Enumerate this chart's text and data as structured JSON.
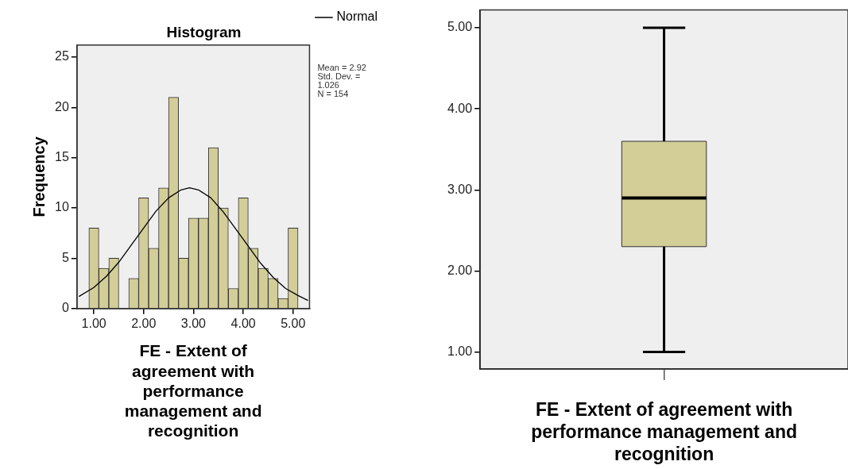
{
  "chart_data": [
    {
      "type": "histogram",
      "title": "Histogram",
      "xlabel": "FE - Extent of agreement with performance management and recognition",
      "ylabel": "Frequency",
      "color": "#d3cd98",
      "bins": [
        0.9,
        1.1,
        1.3,
        1.5,
        1.7,
        1.9,
        2.1,
        2.3,
        2.5,
        2.7,
        2.9,
        3.1,
        3.3,
        3.5,
        3.7,
        3.9,
        4.1,
        4.3,
        4.5,
        4.7,
        4.9,
        5.1
      ],
      "values": [
        8,
        4,
        5,
        0,
        3,
        11,
        6,
        12,
        21,
        5,
        9,
        9,
        16,
        10,
        2,
        11,
        6,
        4,
        3,
        1,
        8
      ],
      "series": [
        {
          "name": "Normal",
          "type": "line",
          "color": "#000000",
          "x": [
            0.7,
            1.0,
            1.25,
            1.5,
            1.75,
            2.0,
            2.25,
            2.5,
            2.75,
            2.92,
            3.1,
            3.35,
            3.6,
            3.85,
            4.1,
            4.35,
            4.6,
            4.85,
            5.1,
            5.3
          ],
          "values": [
            1.2,
            2.1,
            3.2,
            4.6,
            6.3,
            8.0,
            9.7,
            11.0,
            11.8,
            12.0,
            11.8,
            11.0,
            9.6,
            7.9,
            6.2,
            4.5,
            3.1,
            2.0,
            1.3,
            0.8
          ]
        }
      ],
      "xlim": [
        0.66,
        5.33
      ],
      "xticks": [
        {
          "value": 1,
          "label": "1.00"
        },
        {
          "value": 2,
          "label": "2.00"
        },
        {
          "value": 3,
          "label": "3.00"
        },
        {
          "value": 4,
          "label": "4.00"
        },
        {
          "value": 5,
          "label": "5.00"
        }
      ],
      "ylim": [
        0,
        26.2
      ],
      "yticks": [
        0,
        5,
        10,
        15,
        20,
        25
      ],
      "legend": "top right",
      "annotations": [
        "Mean = 2.92",
        "Std. Dev. = 1.026",
        "N = 154"
      ]
    },
    {
      "type": "box",
      "xlabel": "FE - Extent of agreement with performance management and recognition",
      "color": "#d3cd98",
      "categories": [
        null
      ],
      "boxes": [
        {
          "low": 1.0,
          "q1": 2.3,
          "median": 2.9,
          "q3": 3.6,
          "high": 5.0
        }
      ],
      "ylim": [
        0.79,
        5.22
      ],
      "yticks": [
        {
          "value": 1,
          "label": "1.00"
        },
        {
          "value": 2,
          "label": "2.00"
        },
        {
          "value": 3,
          "label": "3.00"
        },
        {
          "value": 4,
          "label": "4.00"
        },
        {
          "value": 5,
          "label": "5.00"
        }
      ],
      "tick_labels": "y"
    }
  ]
}
